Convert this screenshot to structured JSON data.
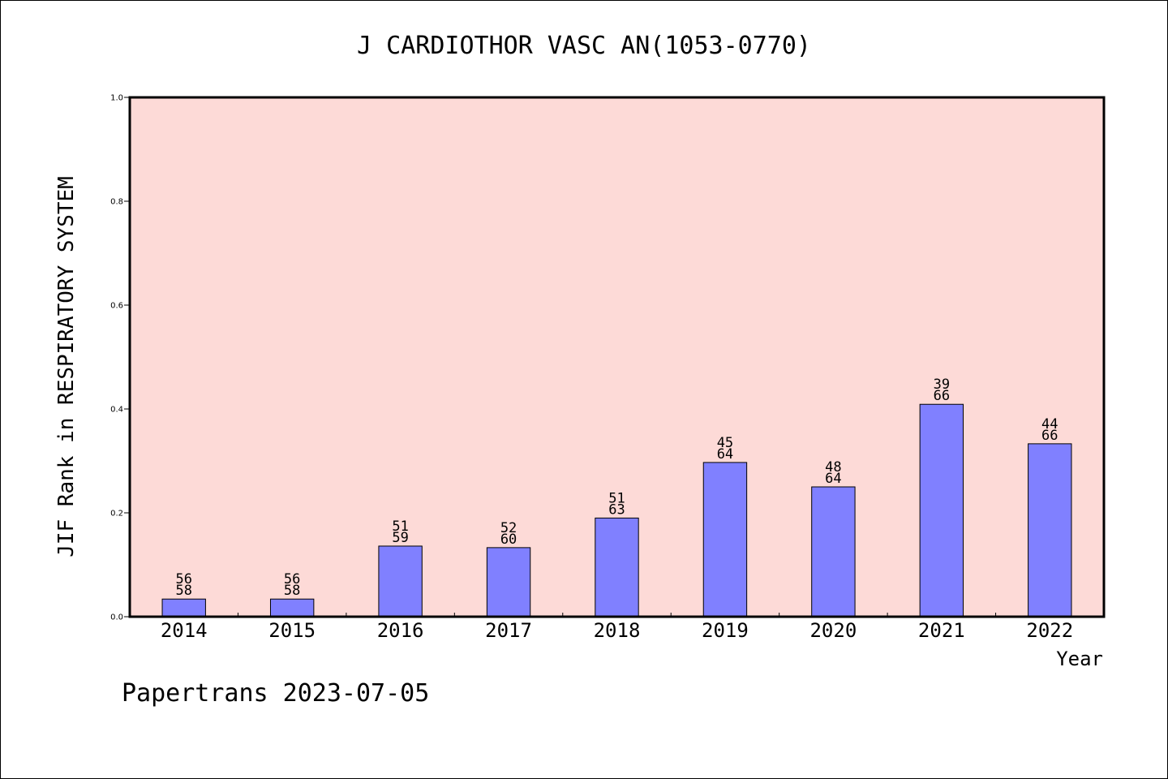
{
  "chart_data": {
    "type": "bar",
    "title": "J CARDIOTHOR VASC AN(1053-0770)",
    "xlabel": "Year",
    "ylabel": "JIF Rank in RESPIRATORY SYSTEM",
    "ylim": [
      0,
      1.0
    ],
    "yticks": [
      "0.0",
      "0.2",
      "0.4",
      "0.6",
      "0.8",
      "1.0"
    ],
    "categories": [
      "2014",
      "2015",
      "2016",
      "2017",
      "2018",
      "2019",
      "2020",
      "2021",
      "2022"
    ],
    "values": [
      0.034,
      0.034,
      0.136,
      0.133,
      0.19,
      0.297,
      0.25,
      0.409,
      0.333
    ],
    "rank_labels": [
      {
        "rank": "56",
        "total": "58"
      },
      {
        "rank": "56",
        "total": "58"
      },
      {
        "rank": "51",
        "total": "59"
      },
      {
        "rank": "52",
        "total": "60"
      },
      {
        "rank": "51",
        "total": "63"
      },
      {
        "rank": "45",
        "total": "64"
      },
      {
        "rank": "48",
        "total": "64"
      },
      {
        "rank": "39",
        "total": "66"
      },
      {
        "rank": "44",
        "total": "66"
      }
    ],
    "grid": false,
    "plot_background": "#fddad7",
    "bar_color": "#8080ff"
  },
  "footer": "Papertrans 2023-07-05"
}
